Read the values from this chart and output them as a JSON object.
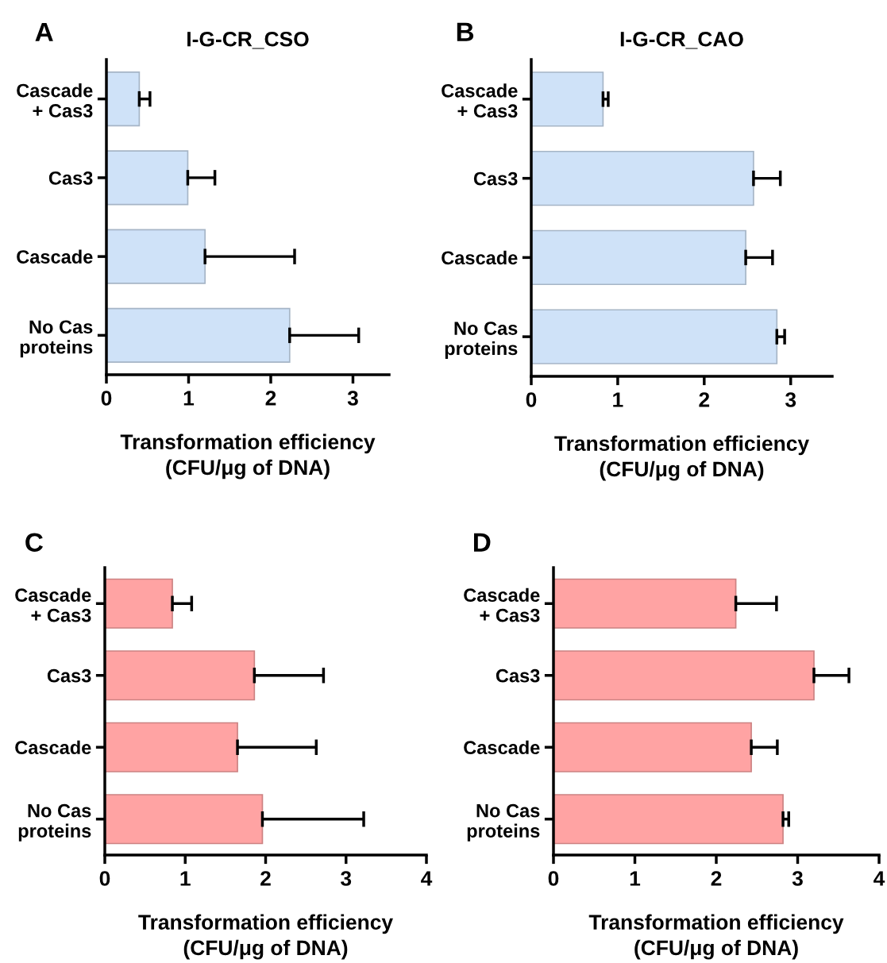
{
  "chart_data": [
    {
      "type": "bar",
      "orientation": "horizontal",
      "title": "I-G-CR_CSO",
      "annotations": [
        "A"
      ],
      "xlabel": "Transformation efficiency\n(CFU/μg of DNA)",
      "categories": [
        "Cascade\n+ Cas3",
        "Cas3",
        "Cascade",
        "No Cas\nproteins"
      ],
      "values": [
        0.4,
        0.99,
        1.2,
        2.23
      ],
      "errors": [
        [
          0.4,
          0.53
        ],
        [
          0.99,
          1.32
        ],
        [
          1.2,
          2.29
        ],
        [
          2.23,
          3.07
        ]
      ],
      "color": "#cfe2f8",
      "xlim": [
        0,
        3.44
      ],
      "xticks": [
        0,
        1,
        2,
        3
      ],
      "grid": false,
      "legend": false
    },
    {
      "type": "bar",
      "orientation": "horizontal",
      "title": "I-G-CR_CAO",
      "annotations": [
        "B"
      ],
      "xlabel": "Transformation efficiency\n(CFU/μg of DNA)",
      "categories": [
        "Cascade\n+ Cas3",
        "Cas3",
        "Cascade",
        "No Cas\nproteins"
      ],
      "values": [
        0.83,
        2.57,
        2.48,
        2.84
      ],
      "errors": [
        [
          0.83,
          0.89
        ],
        [
          2.57,
          2.88
        ],
        [
          2.48,
          2.79
        ],
        [
          2.84,
          2.93
        ]
      ],
      "color": "#cfe2f8",
      "xlim": [
        0,
        3.48
      ],
      "xticks": [
        0,
        1,
        2,
        3
      ],
      "grid": false,
      "legend": false
    },
    {
      "type": "bar",
      "orientation": "horizontal",
      "annotations": [
        "C"
      ],
      "xlabel": "Transformation efficiency\n(CFU/μg of DNA)",
      "categories": [
        "Cascade\n+ Cas3",
        "Cas3",
        "Cascade",
        "No Cas\nproteins"
      ],
      "values": [
        0.84,
        1.86,
        1.65,
        1.96
      ],
      "errors": [
        [
          0.84,
          1.08
        ],
        [
          1.86,
          2.72
        ],
        [
          1.65,
          2.63
        ],
        [
          1.96,
          3.22
        ]
      ],
      "color": "#ffa3a3",
      "xlim": [
        0,
        4
      ],
      "xticks": [
        0,
        1,
        2,
        3,
        4
      ],
      "grid": false,
      "legend": false
    },
    {
      "type": "bar",
      "orientation": "horizontal",
      "annotations": [
        "D"
      ],
      "xlabel": "Transformation efficiency\n(CFU/μg of DNA)",
      "categories": [
        "Cascade\n+ Cas3",
        "Cas3",
        "Cascade",
        "No Cas\nproteins"
      ],
      "values": [
        2.24,
        3.2,
        2.43,
        2.82
      ],
      "errors": [
        [
          2.24,
          2.74
        ],
        [
          3.2,
          3.63
        ],
        [
          2.43,
          2.75
        ],
        [
          2.82,
          2.89
        ]
      ],
      "color": "#ffa3a3",
      "xlim": [
        0,
        4
      ],
      "xticks": [
        0,
        1,
        2,
        3,
        4
      ],
      "grid": false,
      "legend": false
    }
  ]
}
